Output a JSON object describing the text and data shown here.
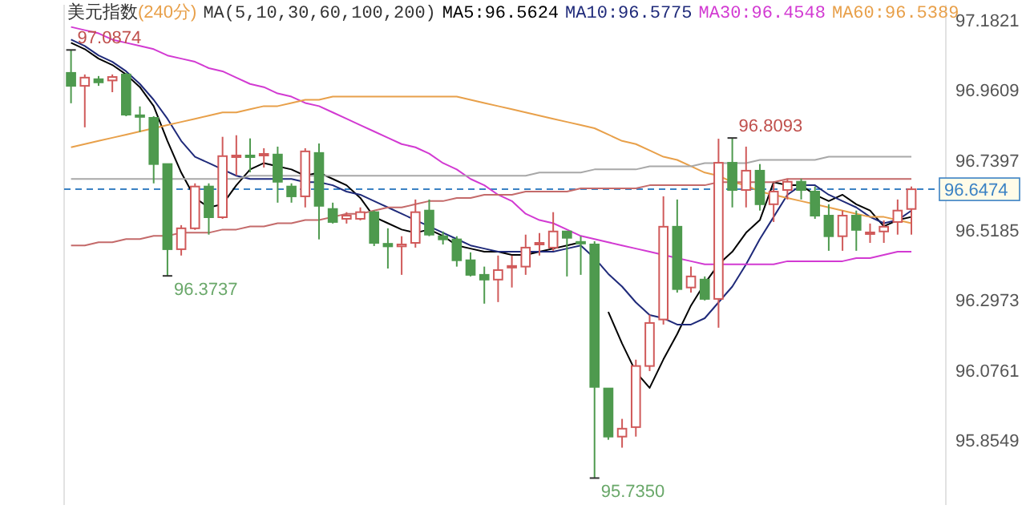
{
  "chart_data": {
    "type": "candlestick",
    "title": "美元指数",
    "subtitle": "(240分)",
    "legend_title": "MA(5,10,30,60,100,200)",
    "legend": "top",
    "categories": [
      null,
      null,
      null,
      null,
      null,
      null,
      null,
      null,
      null,
      null,
      null,
      null,
      null,
      null,
      null,
      null,
      null,
      null,
      null,
      null,
      null,
      null,
      null,
      null,
      null,
      null,
      null,
      null,
      null,
      null,
      null,
      null,
      null,
      null,
      null,
      null,
      null,
      null,
      null,
      null,
      null,
      null,
      null,
      null,
      null,
      null,
      null,
      null,
      null,
      null,
      null,
      null,
      null,
      null,
      null,
      null,
      null,
      null,
      null,
      null,
      null,
      null
    ],
    "ohlc": [
      [
        97.015,
        97.0874,
        96.919,
        96.974
      ],
      [
        96.974,
        97.01,
        96.843,
        97.0
      ],
      [
        96.995,
        97.005,
        96.974,
        96.985
      ],
      [
        96.991,
        97.01,
        96.954,
        97.002
      ],
      [
        97.01,
        97.015,
        96.878,
        96.883
      ],
      [
        96.881,
        96.909,
        96.828,
        96.876
      ],
      [
        96.873,
        96.878,
        96.666,
        96.727
      ],
      [
        96.727,
        96.727,
        96.3737,
        96.458
      ],
      [
        96.458,
        96.534,
        96.438,
        96.524
      ],
      [
        96.524,
        96.666,
        96.519,
        96.656
      ],
      [
        96.656,
        96.666,
        96.504,
        96.559
      ],
      [
        96.559,
        96.813,
        96.554,
        96.752
      ],
      [
        96.749,
        96.818,
        96.691,
        96.754
      ],
      [
        96.754,
        96.808,
        96.701,
        96.749
      ],
      [
        96.754,
        96.777,
        96.716,
        96.759
      ],
      [
        96.757,
        96.782,
        96.605,
        96.671
      ],
      [
        96.656,
        96.666,
        96.605,
        96.625
      ],
      [
        96.625,
        96.777,
        96.59,
        96.767
      ],
      [
        96.762,
        96.792,
        96.489,
        96.595
      ],
      [
        96.585,
        96.605,
        96.539,
        96.544
      ],
      [
        96.554,
        96.575,
        96.539,
        96.564
      ],
      [
        96.554,
        96.59,
        96.549,
        96.575
      ],
      [
        96.575,
        96.58,
        96.468,
        96.478
      ],
      [
        96.475,
        96.524,
        96.397,
        96.467
      ],
      [
        96.467,
        96.499,
        96.377,
        96.473
      ],
      [
        96.478,
        96.615,
        96.463,
        96.575
      ],
      [
        96.58,
        96.615,
        96.499,
        96.504
      ],
      [
        96.499,
        96.514,
        96.473,
        96.489
      ],
      [
        96.489,
        96.499,
        96.403,
        96.423
      ],
      [
        96.423,
        96.448,
        96.372,
        96.377
      ],
      [
        96.377,
        96.403,
        96.286,
        96.362
      ],
      [
        96.362,
        96.438,
        96.291,
        96.392
      ],
      [
        96.403,
        96.438,
        96.337,
        96.405
      ],
      [
        96.403,
        96.504,
        96.377,
        96.463
      ],
      [
        96.473,
        96.509,
        96.438,
        96.478
      ],
      [
        96.463,
        96.575,
        96.453,
        96.514
      ],
      [
        96.514,
        96.514,
        96.372,
        96.494
      ],
      [
        96.481,
        96.499,
        96.377,
        96.476
      ],
      [
        96.473,
        96.483,
        95.735,
        96.023
      ],
      [
        96.018,
        96.018,
        95.856,
        95.866
      ],
      [
        95.866,
        95.922,
        95.831,
        95.891
      ],
      [
        95.896,
        96.109,
        95.866,
        96.089
      ],
      [
        96.089,
        96.251,
        96.073,
        96.225
      ],
      [
        96.236,
        96.625,
        96.22,
        96.529
      ],
      [
        96.529,
        96.615,
        96.321,
        96.332
      ],
      [
        96.337,
        96.403,
        96.321,
        96.372
      ],
      [
        96.362,
        96.372,
        96.296,
        96.301
      ],
      [
        96.301,
        96.807,
        96.21,
        96.731
      ],
      [
        96.731,
        96.8093,
        96.59,
        96.645
      ],
      [
        96.645,
        96.782,
        96.59,
        96.706
      ],
      [
        96.706,
        96.727,
        96.58,
        96.6
      ],
      [
        96.6,
        96.666,
        96.544,
        96.64
      ],
      [
        96.645,
        96.681,
        96.615,
        96.671
      ],
      [
        96.671,
        96.681,
        96.615,
        96.645
      ],
      [
        96.64,
        96.656,
        96.554,
        96.564
      ],
      [
        96.564,
        96.6,
        96.453,
        96.499
      ],
      [
        96.499,
        96.58,
        96.453,
        96.564
      ],
      [
        96.564,
        96.58,
        96.453,
        96.519
      ],
      [
        96.506,
        96.539,
        96.478,
        96.511
      ],
      [
        96.514,
        96.549,
        96.478,
        96.529
      ],
      [
        96.544,
        96.615,
        96.504,
        96.58
      ],
      [
        96.585,
        96.656,
        96.504,
        96.6474
      ]
    ],
    "series": [
      {
        "name": "MA5:96.5624",
        "type": "line",
        "color": "#000000",
        "values": [
          97.11,
          97.09,
          97.06,
          97.04,
          97.01,
          96.97,
          96.91,
          96.8,
          96.7,
          96.62,
          96.59,
          96.6,
          96.66,
          96.71,
          96.73,
          96.72,
          96.71,
          96.69,
          96.7,
          96.68,
          96.66,
          96.62,
          96.56,
          96.54,
          96.52,
          96.51,
          96.52,
          96.5,
          96.47,
          96.46,
          96.45,
          96.45,
          96.44,
          96.44,
          96.45,
          96.46,
          96.47,
          96.48,
          null,
          96.26,
          96.16,
          96.07,
          96.02,
          96.11,
          96.19,
          96.28,
          96.35,
          96.41,
          96.45,
          96.51,
          96.55,
          96.67,
          96.66,
          96.66,
          96.63,
          96.61,
          96.63,
          96.6,
          96.58,
          96.53,
          96.55,
          96.56
        ]
      },
      {
        "name": "MA10:96.5775",
        "type": "line",
        "color": "#1f2a7a",
        "values": [
          97.12,
          97.1,
          97.07,
          97.05,
          97.02,
          96.98,
          96.93,
          96.87,
          96.8,
          96.75,
          96.73,
          96.71,
          96.69,
          96.68,
          96.68,
          96.68,
          96.68,
          96.67,
          96.67,
          96.66,
          96.64,
          96.63,
          96.61,
          96.59,
          96.57,
          96.55,
          96.53,
          96.51,
          96.49,
          96.47,
          96.46,
          96.45,
          96.45,
          96.45,
          96.45,
          96.45,
          96.46,
          96.47,
          96.43,
          96.38,
          96.34,
          96.29,
          96.25,
          96.24,
          96.22,
          96.22,
          96.24,
          96.29,
          96.34,
          96.41,
          96.49,
          96.56,
          96.63,
          96.66,
          96.66,
          96.63,
          96.61,
          96.59,
          96.56,
          96.54,
          96.55,
          96.58
        ]
      },
      {
        "name": "MA30:96.4548",
        "type": "line",
        "color": "#d23ad2",
        "values": [
          97.16,
          97.15,
          97.14,
          97.12,
          97.11,
          97.1,
          97.09,
          97.07,
          97.06,
          97.05,
          97.03,
          97.02,
          97.0,
          96.98,
          96.97,
          96.95,
          96.94,
          96.92,
          96.91,
          96.89,
          96.87,
          96.85,
          96.83,
          96.81,
          96.79,
          96.78,
          96.76,
          96.73,
          96.71,
          96.68,
          96.66,
          96.63,
          96.61,
          96.57,
          96.55,
          96.54,
          96.52,
          96.5,
          96.49,
          96.48,
          96.47,
          96.46,
          96.45,
          96.44,
          96.43,
          96.42,
          96.41,
          96.41,
          96.41,
          96.41,
          96.41,
          96.41,
          96.42,
          96.42,
          96.42,
          96.42,
          96.42,
          96.43,
          96.43,
          96.44,
          96.45,
          96.45
        ]
      },
      {
        "name": "MA60:96.5389",
        "type": "line",
        "color": "#e8a04a",
        "values": [
          96.78,
          96.79,
          96.8,
          96.81,
          96.82,
          96.83,
          96.84,
          96.85,
          96.86,
          96.87,
          96.88,
          96.89,
          96.89,
          96.9,
          96.91,
          96.91,
          96.92,
          96.93,
          96.93,
          96.94,
          96.94,
          96.94,
          96.94,
          96.94,
          96.94,
          96.94,
          96.94,
          96.94,
          96.94,
          96.93,
          96.92,
          96.91,
          96.9,
          96.89,
          96.88,
          96.87,
          96.86,
          96.85,
          96.84,
          96.82,
          96.8,
          96.79,
          96.77,
          96.75,
          96.74,
          96.72,
          96.7,
          96.69,
          96.67,
          96.66,
          96.64,
          96.63,
          96.62,
          96.61,
          96.6,
          96.59,
          96.58,
          96.57,
          96.56,
          96.56,
          96.55,
          96.54
        ]
      },
      {
        "type": "line",
        "color": "#a8a8a8",
        "values": [
          96.68,
          96.68,
          96.68,
          96.68,
          96.68,
          96.68,
          96.68,
          96.68,
          96.68,
          96.68,
          96.68,
          96.68,
          96.68,
          96.69,
          96.69,
          96.69,
          96.69,
          96.69,
          96.69,
          96.69,
          96.69,
          96.69,
          96.69,
          96.69,
          96.69,
          96.69,
          96.69,
          96.69,
          96.69,
          96.69,
          96.69,
          96.69,
          96.69,
          96.69,
          96.7,
          96.7,
          96.7,
          96.7,
          96.71,
          96.71,
          96.71,
          96.71,
          96.72,
          96.72,
          96.72,
          96.72,
          96.73,
          96.73,
          96.73,
          96.73,
          96.74,
          96.74,
          96.74,
          96.74,
          96.74,
          96.75,
          96.75,
          96.75,
          96.75,
          96.75,
          96.75,
          96.75
        ]
      },
      {
        "type": "line",
        "color": "#c46a6a",
        "values": [
          96.47,
          96.47,
          96.48,
          96.48,
          96.49,
          96.49,
          96.5,
          96.5,
          96.51,
          96.51,
          96.51,
          96.52,
          96.52,
          96.53,
          96.53,
          96.54,
          96.54,
          96.55,
          96.55,
          96.56,
          96.57,
          96.57,
          96.58,
          96.59,
          96.59,
          96.6,
          96.61,
          96.61,
          96.62,
          96.62,
          96.63,
          96.63,
          96.63,
          96.64,
          96.64,
          96.64,
          96.64,
          96.65,
          96.65,
          96.65,
          96.65,
          96.65,
          96.66,
          96.66,
          96.66,
          96.66,
          96.66,
          96.67,
          96.67,
          96.67,
          96.67,
          96.67,
          96.68,
          96.68,
          96.68,
          96.68,
          96.68,
          96.68,
          96.68,
          96.68,
          96.68,
          96.68
        ]
      }
    ],
    "ylim": [
      95.65,
      97.23
    ],
    "yticks": [
      97.1821,
      96.9609,
      96.7397,
      96.5185,
      96.2973,
      96.0761,
      95.8549
    ],
    "ref_lines": [
      {
        "axis": "y",
        "value": 96.6474,
        "label": "96.6474",
        "color": "#3b82c4",
        "line_style": "dashed"
      }
    ],
    "annotations": [
      "97.0874",
      "96.3737",
      "95.7350",
      "96.8093"
    ]
  }
}
